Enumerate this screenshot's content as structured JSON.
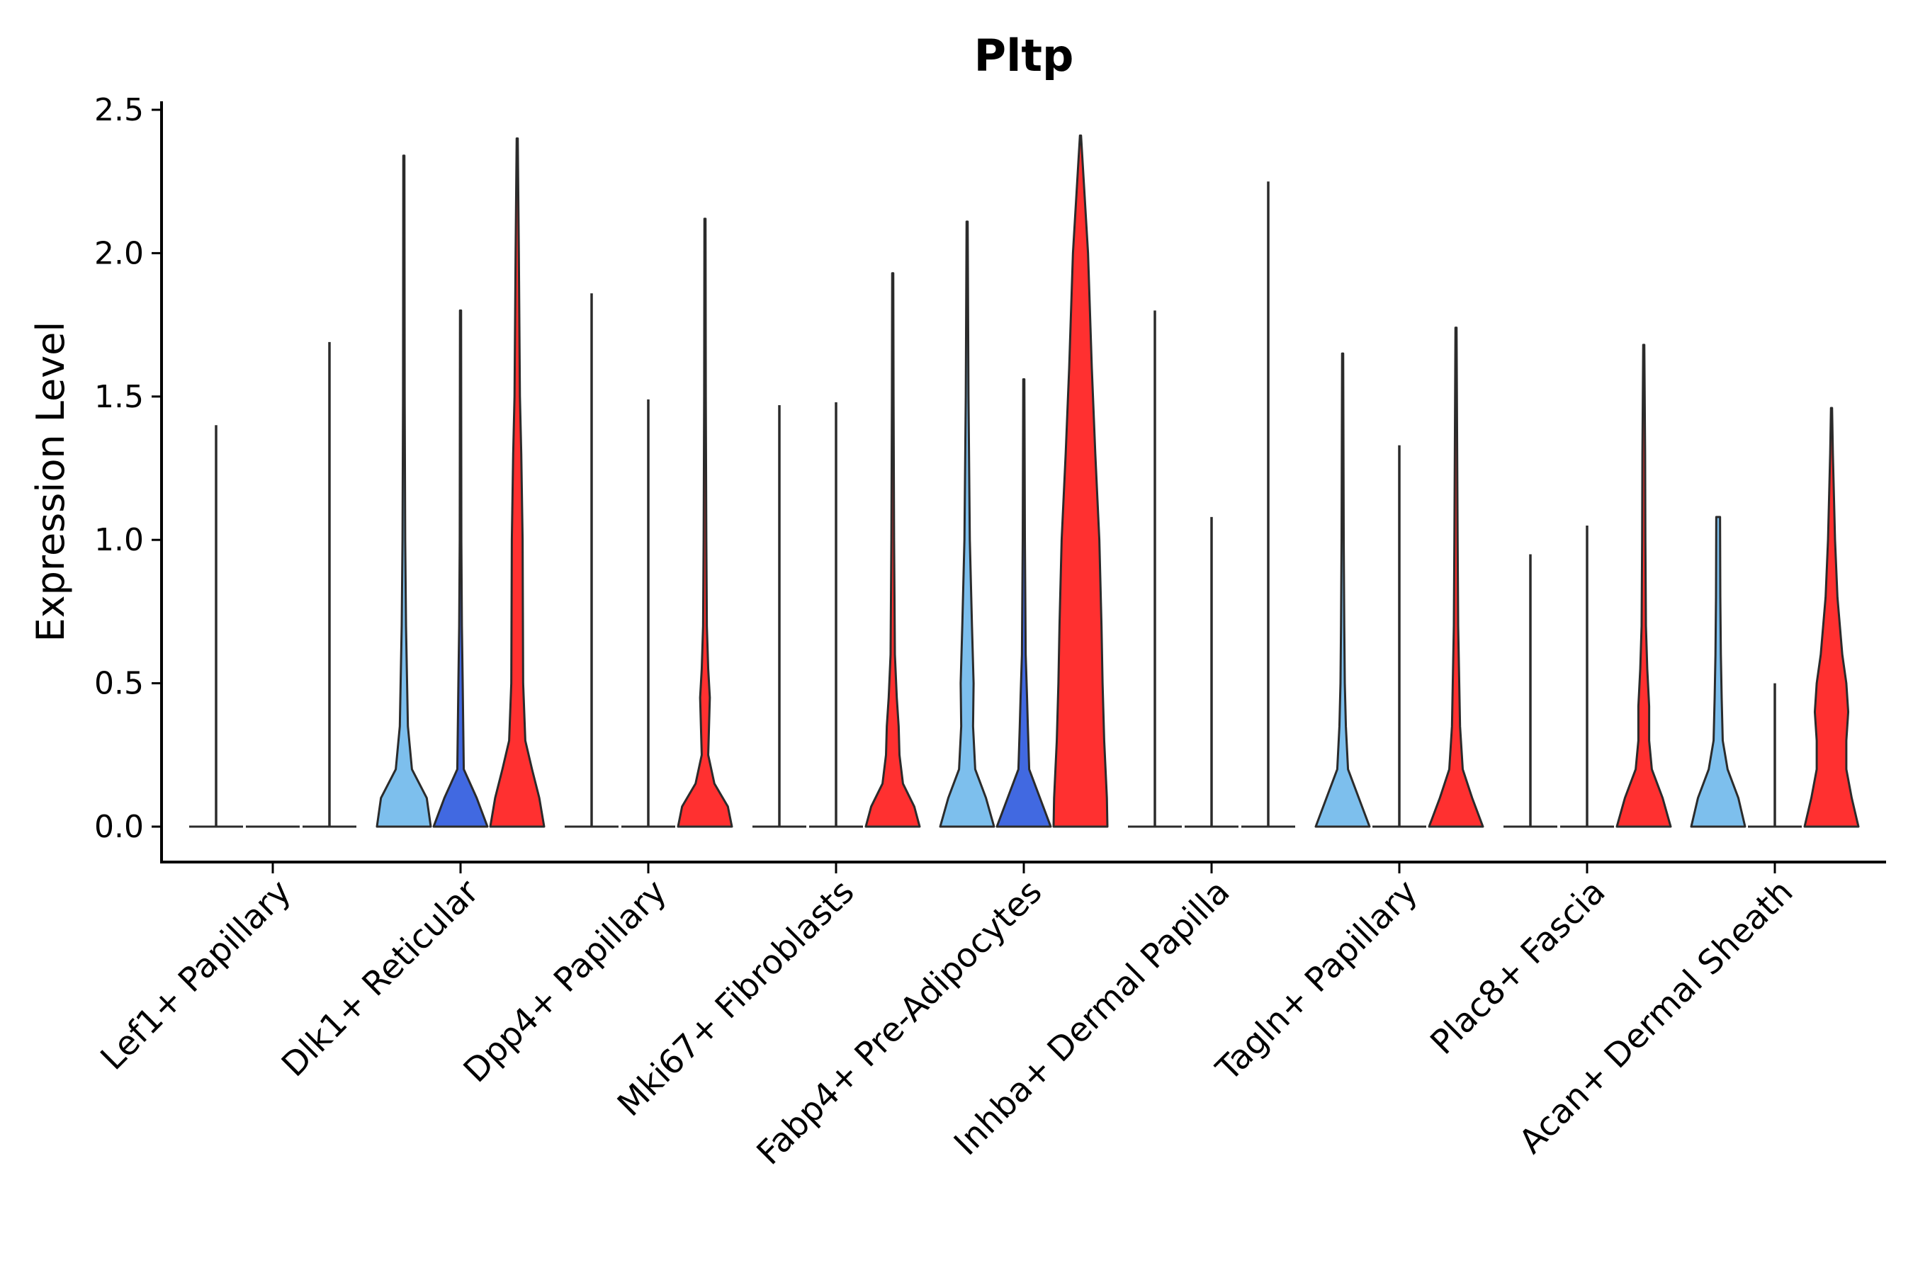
{
  "chart_data": {
    "type": "violin",
    "title": "Pltp",
    "xlabel": "",
    "ylabel": "Expression Level",
    "ylim": [
      0,
      2.5
    ],
    "yticks": [
      "0.0",
      "0.5",
      "1.0",
      "1.5",
      "2.0",
      "2.5"
    ],
    "ytick_values": [
      0,
      0.5,
      1.0,
      1.5,
      2.0,
      2.5
    ],
    "categories": [
      "Lef1+ Papillary",
      "Dlk1+ Reticular",
      "Dpp4+ Papillary",
      "Mki67+ Fibroblasts",
      "Fabp4+ Pre-Adipocytes",
      "Inhba+ Dermal Papilla",
      "Tagln+ Papillary",
      "Plac8+ Fascia",
      "Acan+ Dermal Sheath"
    ],
    "series_colors": [
      "#7dbfed",
      "#4169e1",
      "#ff3030"
    ],
    "violins": [
      [
        {
          "max": 1.4,
          "profile": []
        },
        {
          "max": 0.0,
          "profile": []
        },
        {
          "max": 1.69,
          "profile": []
        }
      ],
      [
        {
          "max": 2.34,
          "profile": [
            [
              0,
              1.0
            ],
            [
              0.1,
              0.85
            ],
            [
              0.2,
              0.3
            ],
            [
              0.35,
              0.15
            ],
            [
              0.5,
              0.12
            ],
            [
              0.7,
              0.08
            ],
            [
              1.0,
              0.05
            ],
            [
              1.5,
              0.03
            ],
            [
              2.34,
              0.02
            ]
          ]
        },
        {
          "max": 1.8,
          "profile": [
            [
              0,
              1.0
            ],
            [
              0.1,
              0.6
            ],
            [
              0.2,
              0.12
            ],
            [
              0.35,
              0.1
            ],
            [
              0.5,
              0.08
            ],
            [
              0.7,
              0.05
            ],
            [
              1.0,
              0.03
            ],
            [
              1.8,
              0.02
            ]
          ]
        },
        {
          "max": 2.4,
          "profile": [
            [
              0,
              1.0
            ],
            [
              0.1,
              0.82
            ],
            [
              0.2,
              0.55
            ],
            [
              0.3,
              0.3
            ],
            [
              0.5,
              0.22
            ],
            [
              1.0,
              0.2
            ],
            [
              1.3,
              0.15
            ],
            [
              1.5,
              0.1
            ],
            [
              2.0,
              0.06
            ],
            [
              2.4,
              0.02
            ]
          ]
        }
      ],
      [
        {
          "max": 1.86,
          "profile": []
        },
        {
          "max": 1.49,
          "profile": []
        },
        {
          "max": 2.12,
          "profile": [
            [
              0,
              1.0
            ],
            [
              0.07,
              0.85
            ],
            [
              0.15,
              0.35
            ],
            [
              0.25,
              0.12
            ],
            [
              0.35,
              0.15
            ],
            [
              0.45,
              0.18
            ],
            [
              0.55,
              0.12
            ],
            [
              0.7,
              0.07
            ],
            [
              1.0,
              0.05
            ],
            [
              1.5,
              0.03
            ],
            [
              2.12,
              0.02
            ]
          ]
        }
      ],
      [
        {
          "max": 1.47,
          "profile": []
        },
        {
          "max": 1.48,
          "profile": []
        },
        {
          "max": 1.93,
          "profile": [
            [
              0,
              1.0
            ],
            [
              0.07,
              0.8
            ],
            [
              0.15,
              0.38
            ],
            [
              0.25,
              0.25
            ],
            [
              0.35,
              0.22
            ],
            [
              0.45,
              0.15
            ],
            [
              0.6,
              0.08
            ],
            [
              1.0,
              0.05
            ],
            [
              1.5,
              0.03
            ],
            [
              1.93,
              0.02
            ]
          ]
        }
      ],
      [
        {
          "max": 2.11,
          "profile": [
            [
              0,
              1.0
            ],
            [
              0.1,
              0.7
            ],
            [
              0.2,
              0.3
            ],
            [
              0.35,
              0.22
            ],
            [
              0.5,
              0.24
            ],
            [
              0.7,
              0.18
            ],
            [
              1.0,
              0.1
            ],
            [
              1.5,
              0.05
            ],
            [
              2.11,
              0.02
            ]
          ]
        },
        {
          "max": 1.56,
          "profile": [
            [
              0,
              1.0
            ],
            [
              0.1,
              0.6
            ],
            [
              0.2,
              0.2
            ],
            [
              0.35,
              0.15
            ],
            [
              0.45,
              0.12
            ],
            [
              0.6,
              0.07
            ],
            [
              1.0,
              0.04
            ],
            [
              1.56,
              0.02
            ]
          ]
        },
        {
          "max": 2.41,
          "profile": [
            [
              0,
              1.0
            ],
            [
              0.1,
              0.98
            ],
            [
              0.2,
              0.93
            ],
            [
              0.3,
              0.88
            ],
            [
              0.5,
              0.82
            ],
            [
              0.7,
              0.78
            ],
            [
              1.0,
              0.7
            ],
            [
              1.3,
              0.55
            ],
            [
              1.6,
              0.42
            ],
            [
              2.0,
              0.28
            ],
            [
              2.41,
              0.02
            ]
          ]
        }
      ],
      [
        {
          "max": 1.8,
          "profile": []
        },
        {
          "max": 1.08,
          "profile": []
        },
        {
          "max": 2.25,
          "profile": []
        }
      ],
      [
        {
          "max": 1.65,
          "profile": [
            [
              0,
              1.0
            ],
            [
              0.1,
              0.6
            ],
            [
              0.2,
              0.2
            ],
            [
              0.35,
              0.12
            ],
            [
              0.5,
              0.08
            ],
            [
              0.7,
              0.06
            ],
            [
              1.0,
              0.04
            ],
            [
              1.65,
              0.02
            ]
          ]
        },
        {
          "max": 1.33,
          "profile": []
        },
        {
          "max": 1.74,
          "profile": [
            [
              0,
              1.0
            ],
            [
              0.1,
              0.6
            ],
            [
              0.2,
              0.25
            ],
            [
              0.35,
              0.15
            ],
            [
              0.5,
              0.12
            ],
            [
              0.7,
              0.08
            ],
            [
              1.0,
              0.06
            ],
            [
              1.74,
              0.02
            ]
          ]
        }
      ],
      [
        {
          "max": 0.95,
          "profile": []
        },
        {
          "max": 1.05,
          "profile": []
        },
        {
          "max": 1.68,
          "profile": [
            [
              0,
              1.0
            ],
            [
              0.1,
              0.7
            ],
            [
              0.2,
              0.3
            ],
            [
              0.3,
              0.2
            ],
            [
              0.42,
              0.2
            ],
            [
              0.55,
              0.13
            ],
            [
              0.7,
              0.08
            ],
            [
              1.0,
              0.06
            ],
            [
              1.3,
              0.05
            ],
            [
              1.68,
              0.02
            ]
          ]
        }
      ],
      [
        {
          "max": 1.08,
          "profile": [
            [
              0,
              1.0
            ],
            [
              0.1,
              0.75
            ],
            [
              0.2,
              0.35
            ],
            [
              0.3,
              0.17
            ],
            [
              0.45,
              0.13
            ],
            [
              0.6,
              0.1
            ],
            [
              0.8,
              0.08
            ],
            [
              1.08,
              0.07
            ]
          ]
        },
        {
          "max": 0.5,
          "profile": []
        },
        {
          "max": 1.46,
          "profile": [
            [
              0,
              1.0
            ],
            [
              0.1,
              0.75
            ],
            [
              0.2,
              0.55
            ],
            [
              0.3,
              0.55
            ],
            [
              0.4,
              0.62
            ],
            [
              0.5,
              0.55
            ],
            [
              0.6,
              0.4
            ],
            [
              0.8,
              0.22
            ],
            [
              1.0,
              0.13
            ],
            [
              1.3,
              0.05
            ],
            [
              1.46,
              0.02
            ]
          ]
        }
      ]
    ]
  }
}
